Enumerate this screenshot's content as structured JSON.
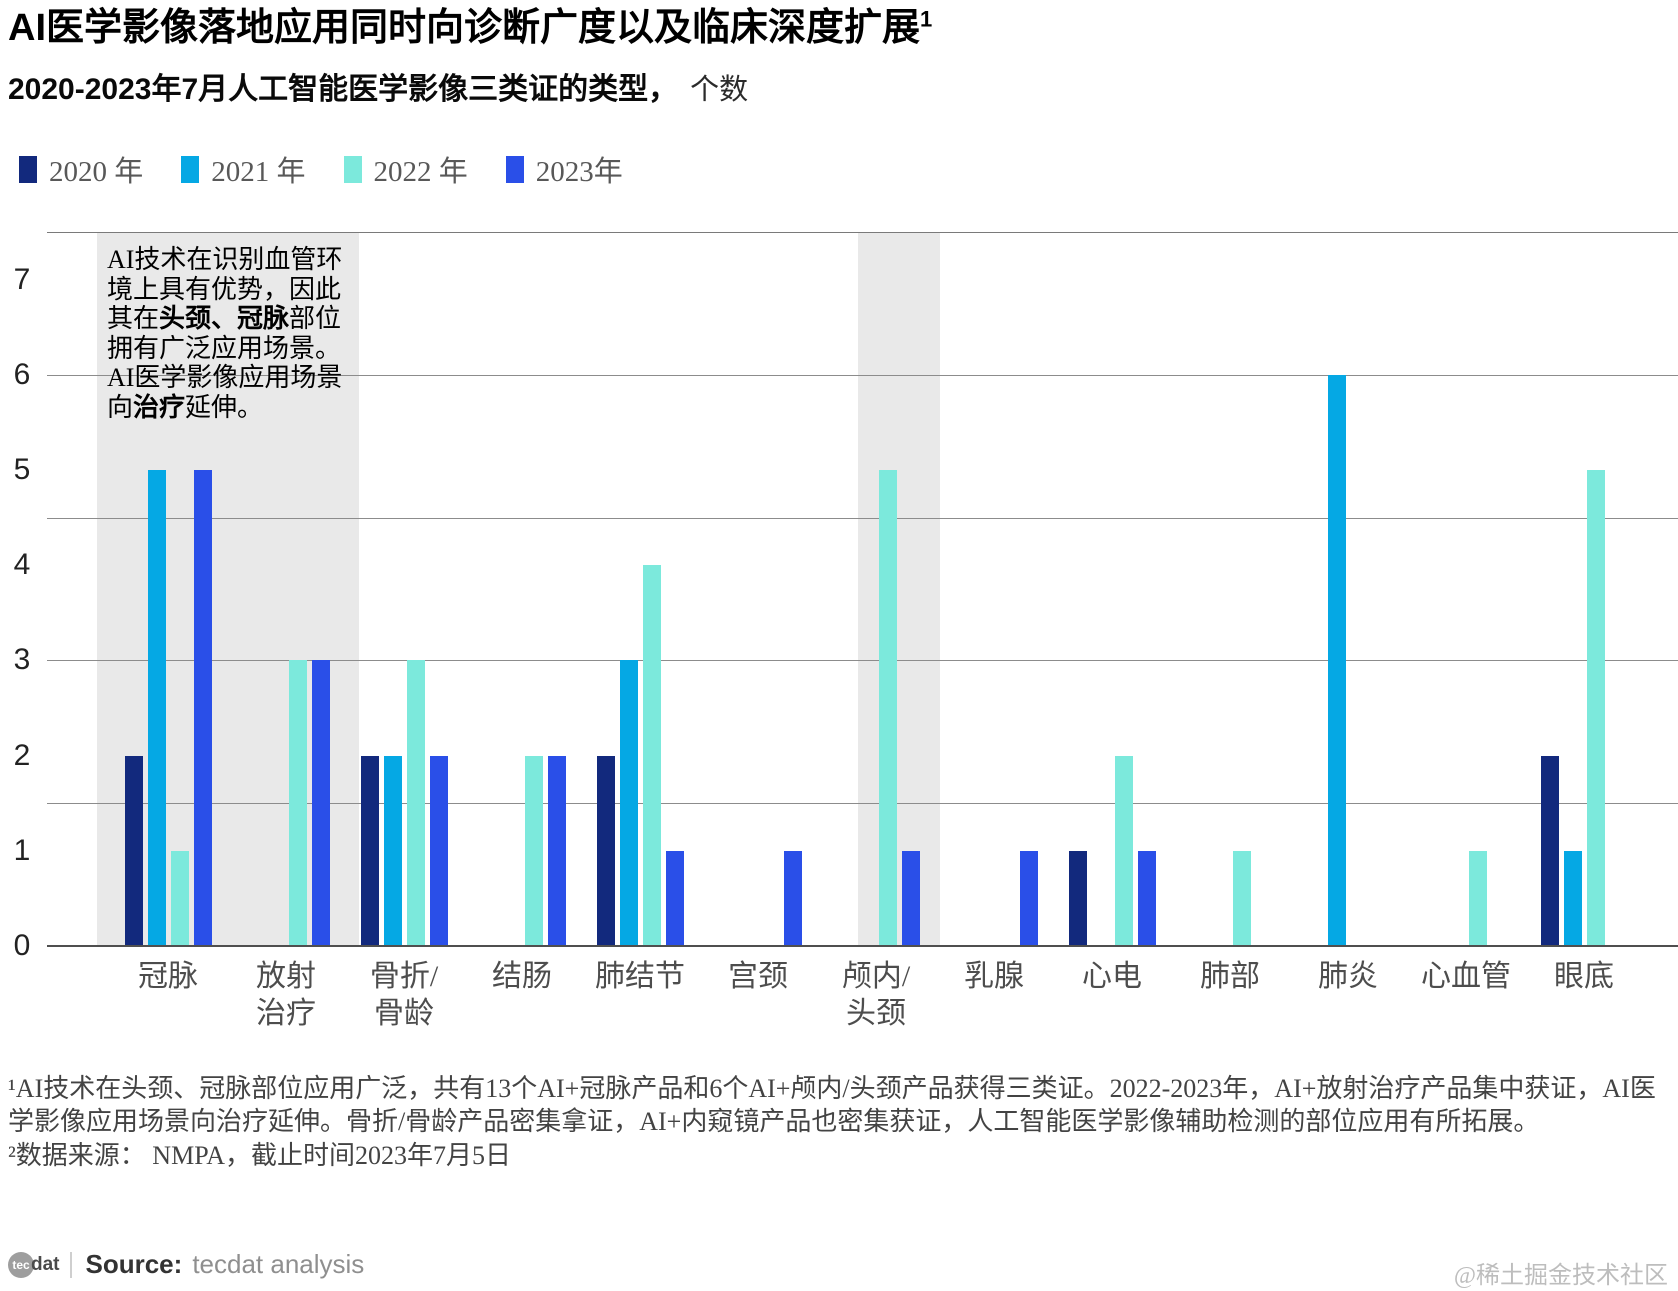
{
  "header": {
    "title": "AI医学影像落地应用同时向诊断广度以及临床深度扩展",
    "title_superscript": "1",
    "subtitle_bold": "2020-2023年7月人工智能医学影像三类证的类型，",
    "subtitle_unit": "个数"
  },
  "legend": [
    {
      "label": "2020 年",
      "color": "#12297d"
    },
    {
      "label": "2021 年",
      "color": "#05a8e4"
    },
    {
      "label": "2022 年",
      "color": "#7ce9dc"
    },
    {
      "label": "2023年",
      "color": "#2a4fe8"
    }
  ],
  "annotation": {
    "part1": "AI技术在识别血管环境上具有优势，因此其在",
    "bold1": "头颈、冠脉",
    "part2": "部位拥有广泛应用场景。",
    "part3": "AI医学影像应用场景向",
    "bold2": "治疗",
    "part4": "延伸。"
  },
  "chart_data": {
    "type": "bar",
    "title": "2020-2023年7月人工智能医学影像三类证的类型，个数",
    "categories": [
      "冠脉",
      "放射治疗",
      "骨折/骨龄",
      "结肠",
      "肺结节",
      "宫颈",
      "颅内/头颈",
      "乳腺",
      "心电",
      "肺部",
      "肺炎",
      "心血管",
      "眼底"
    ],
    "category_label_lines": [
      [
        "冠脉"
      ],
      [
        "放射",
        "治疗"
      ],
      [
        "骨折/",
        "骨龄"
      ],
      [
        "结肠"
      ],
      [
        "肺结节"
      ],
      [
        "宫颈"
      ],
      [
        "颅内/",
        "头颈"
      ],
      [
        "乳腺"
      ],
      [
        "心电"
      ],
      [
        "肺部"
      ],
      [
        "肺炎"
      ],
      [
        "心血管"
      ],
      [
        "眼底"
      ]
    ],
    "series": [
      {
        "name": "2020 年",
        "color": "#12297d",
        "values": [
          2,
          0,
          2,
          0,
          2,
          0,
          0,
          0,
          1,
          0,
          0,
          0,
          2
        ]
      },
      {
        "name": "2021 年",
        "color": "#05a8e4",
        "values": [
          5,
          0,
          2,
          0,
          3,
          0,
          0,
          0,
          0,
          0,
          6,
          0,
          1
        ]
      },
      {
        "name": "2022 年",
        "color": "#7ce9dc",
        "values": [
          1,
          3,
          3,
          2,
          4,
          0,
          5,
          0,
          2,
          1,
          0,
          1,
          5
        ]
      },
      {
        "name": "2023年",
        "color": "#2a4fe8",
        "values": [
          5,
          3,
          2,
          2,
          1,
          1,
          1,
          1,
          1,
          0,
          0,
          0,
          0
        ]
      }
    ],
    "ylabel": "个数",
    "xlabel": "",
    "ylim": [
      0,
      7.5
    ],
    "yticks": [
      0,
      1,
      2,
      3,
      4,
      5,
      6,
      7
    ],
    "grid": true,
    "legend_position": "top",
    "highlighted_categories": [
      "冠脉",
      "放射治疗",
      "颅内/头颈"
    ]
  },
  "footnotes": {
    "line1": "¹AI技术在头颈、冠脉部位应用广泛，共有13个AI+冠脉产品和6个AI+颅内/头颈产品获得三类证。2022-2023年，AI+放射治疗产品集中获证，AI医学影像应用场景向治疗延伸。骨折/骨龄产品密集拿证，AI+内窥镜产品也密集获证，人工智能医学影像辅助检测的部位应用有所拓展。",
    "line2": "²数据来源： NMPA，截止时间2023年7月5日"
  },
  "footer": {
    "logo_circle_text": "tec",
    "logo_suffix": "dat",
    "source_label": "Source:",
    "source_value": "tecdat analysis",
    "watermark": "@稀土掘金技术社区"
  }
}
